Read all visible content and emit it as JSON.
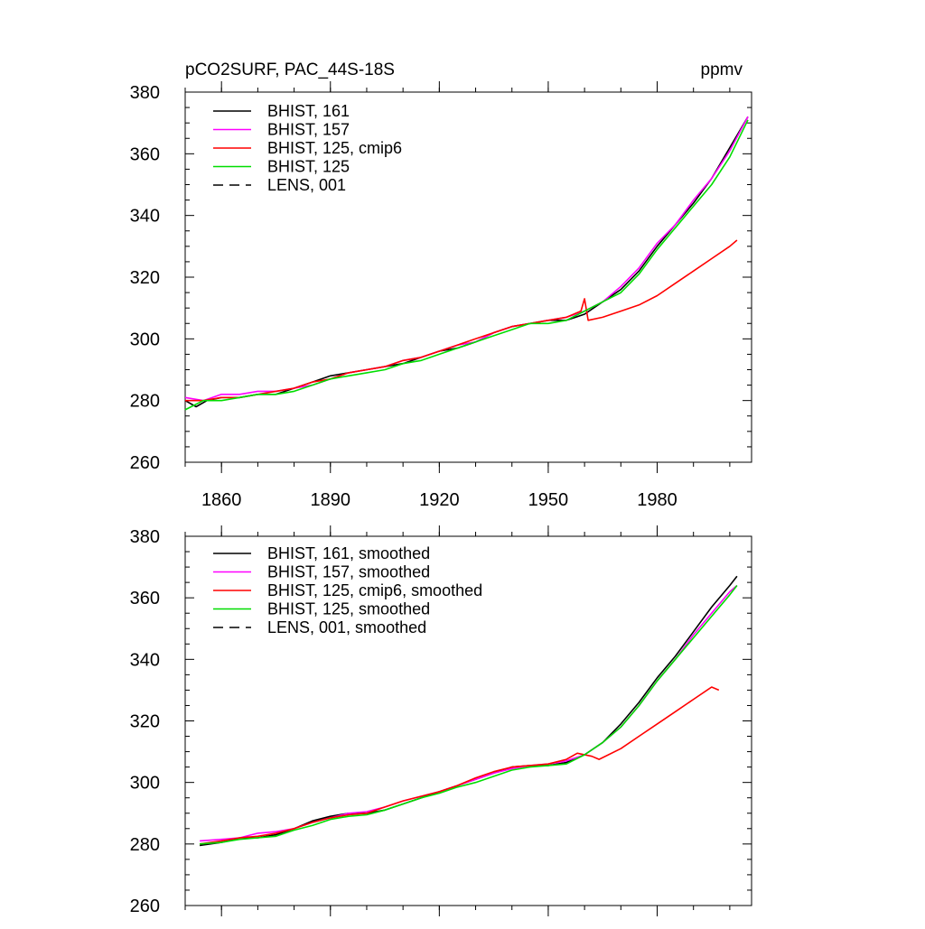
{
  "colors": {
    "black": "#000000",
    "magenta": "#ff00ff",
    "red": "#ff0000",
    "green": "#00dd00"
  },
  "header": {
    "title": "pCO2SURF, PAC_44S-18S",
    "units": "ppmv"
  },
  "chart_data": [
    {
      "type": "line",
      "title": "pCO2SURF, PAC_44S-18S",
      "units": "ppmv",
      "xlim": [
        1850,
        2006
      ],
      "ylim": [
        260,
        380
      ],
      "x_ticks": [
        1860,
        1890,
        1920,
        1950,
        1980
      ],
      "y_ticks": [
        260,
        280,
        300,
        320,
        340,
        360,
        380
      ],
      "grid": false,
      "legend_position": "top-left",
      "legend": [
        "BHIST, 161",
        "BHIST, 157",
        "BHIST, 125, cmip6",
        "BHIST, 125",
        "LENS, 001"
      ],
      "series": [
        {
          "name": "BHIST, 161",
          "color": "#000000",
          "dash": "solid",
          "points": [
            [
              1850,
              280
            ],
            [
              1853,
              278
            ],
            [
              1856,
              280
            ],
            [
              1860,
              281
            ],
            [
              1865,
              281
            ],
            [
              1870,
              282
            ],
            [
              1875,
              282
            ],
            [
              1880,
              284
            ],
            [
              1885,
              286
            ],
            [
              1890,
              288
            ],
            [
              1895,
              289
            ],
            [
              1900,
              290
            ],
            [
              1905,
              291
            ],
            [
              1910,
              292
            ],
            [
              1915,
              294
            ],
            [
              1920,
              296
            ],
            [
              1925,
              297
            ],
            [
              1930,
              299
            ],
            [
              1935,
              302
            ],
            [
              1940,
              304
            ],
            [
              1945,
              305
            ],
            [
              1950,
              306
            ],
            [
              1955,
              306
            ],
            [
              1960,
              308
            ],
            [
              1965,
              312
            ],
            [
              1970,
              316
            ],
            [
              1975,
              322
            ],
            [
              1980,
              330
            ],
            [
              1985,
              337
            ],
            [
              1990,
              344
            ],
            [
              1995,
              352
            ],
            [
              2000,
              362
            ],
            [
              2005,
              372
            ]
          ]
        },
        {
          "name": "BHIST, 157",
          "color": "#ff00ff",
          "dash": "solid",
          "points": [
            [
              1850,
              281
            ],
            [
              1855,
              280
            ],
            [
              1860,
              282
            ],
            [
              1865,
              282
            ],
            [
              1870,
              283
            ],
            [
              1875,
              283
            ],
            [
              1880,
              284
            ],
            [
              1885,
              285
            ],
            [
              1890,
              287
            ],
            [
              1895,
              289
            ],
            [
              1900,
              290
            ],
            [
              1905,
              291
            ],
            [
              1910,
              293
            ],
            [
              1915,
              294
            ],
            [
              1920,
              296
            ],
            [
              1925,
              298
            ],
            [
              1930,
              299
            ],
            [
              1935,
              302
            ],
            [
              1940,
              304
            ],
            [
              1945,
              305
            ],
            [
              1950,
              306
            ],
            [
              1955,
              307
            ],
            [
              1960,
              309
            ],
            [
              1965,
              312
            ],
            [
              1970,
              317
            ],
            [
              1975,
              323
            ],
            [
              1980,
              331
            ],
            [
              1985,
              337
            ],
            [
              1990,
              345
            ],
            [
              1995,
              352
            ],
            [
              2000,
              361
            ],
            [
              2005,
              372
            ]
          ]
        },
        {
          "name": "BHIST, 125, cmip6",
          "color": "#ff0000",
          "dash": "solid",
          "points": [
            [
              1850,
              280
            ],
            [
              1855,
              280
            ],
            [
              1860,
              281
            ],
            [
              1865,
              281
            ],
            [
              1870,
              282
            ],
            [
              1875,
              283
            ],
            [
              1880,
              284
            ],
            [
              1885,
              286
            ],
            [
              1890,
              287
            ],
            [
              1895,
              289
            ],
            [
              1900,
              290
            ],
            [
              1905,
              291
            ],
            [
              1910,
              293
            ],
            [
              1915,
              294
            ],
            [
              1920,
              296
            ],
            [
              1925,
              298
            ],
            [
              1930,
              300
            ],
            [
              1935,
              302
            ],
            [
              1940,
              304
            ],
            [
              1945,
              305
            ],
            [
              1950,
              306
            ],
            [
              1955,
              307
            ],
            [
              1959,
              309
            ],
            [
              1960,
              313
            ],
            [
              1961,
              306
            ],
            [
              1965,
              307
            ],
            [
              1970,
              309
            ],
            [
              1975,
              311
            ],
            [
              1980,
              314
            ],
            [
              1985,
              318
            ],
            [
              1990,
              322
            ],
            [
              1995,
              326
            ],
            [
              2000,
              330
            ],
            [
              2002,
              332
            ]
          ]
        },
        {
          "name": "BHIST, 125",
          "color": "#00dd00",
          "dash": "solid",
          "points": [
            [
              1850,
              277
            ],
            [
              1855,
              280
            ],
            [
              1860,
              280
            ],
            [
              1865,
              281
            ],
            [
              1870,
              282
            ],
            [
              1875,
              282
            ],
            [
              1880,
              283
            ],
            [
              1885,
              285
            ],
            [
              1890,
              287
            ],
            [
              1895,
              288
            ],
            [
              1900,
              289
            ],
            [
              1905,
              290
            ],
            [
              1910,
              292
            ],
            [
              1915,
              293
            ],
            [
              1920,
              295
            ],
            [
              1925,
              297
            ],
            [
              1930,
              299
            ],
            [
              1935,
              301
            ],
            [
              1940,
              303
            ],
            [
              1945,
              305
            ],
            [
              1950,
              305
            ],
            [
              1955,
              306
            ],
            [
              1960,
              309
            ],
            [
              1965,
              312
            ],
            [
              1970,
              315
            ],
            [
              1975,
              321
            ],
            [
              1980,
              329
            ],
            [
              1985,
              336
            ],
            [
              1990,
              343
            ],
            [
              1995,
              350
            ],
            [
              2000,
              359
            ],
            [
              2005,
              371
            ]
          ]
        }
      ]
    },
    {
      "type": "line",
      "xlim": [
        1850,
        2006
      ],
      "ylim": [
        260,
        380
      ],
      "y_ticks": [
        260,
        280,
        300,
        320,
        340,
        360,
        380
      ],
      "grid": false,
      "legend_position": "top-left",
      "legend": [
        "BHIST, 161, smoothed",
        "BHIST, 157, smoothed",
        "BHIST, 125, cmip6, smoothed",
        "BHIST, 125, smoothed",
        "LENS, 001, smoothed"
      ],
      "series": [
        {
          "name": "BHIST, 161, smoothed",
          "color": "#000000",
          "dash": "solid",
          "points": [
            [
              1854,
              279.5
            ],
            [
              1860,
              280.5
            ],
            [
              1865,
              282
            ],
            [
              1870,
              282
            ],
            [
              1875,
              283
            ],
            [
              1880,
              285
            ],
            [
              1885,
              287.5
            ],
            [
              1890,
              289
            ],
            [
              1895,
              290
            ],
            [
              1900,
              290
            ],
            [
              1905,
              291
            ],
            [
              1910,
              293
            ],
            [
              1915,
              295
            ],
            [
              1920,
              297
            ],
            [
              1925,
              299
            ],
            [
              1930,
              301
            ],
            [
              1935,
              303
            ],
            [
              1940,
              305
            ],
            [
              1945,
              305.5
            ],
            [
              1950,
              305.5
            ],
            [
              1955,
              306.5
            ],
            [
              1960,
              309
            ],
            [
              1965,
              313
            ],
            [
              1970,
              319
            ],
            [
              1975,
              326
            ],
            [
              1980,
              334
            ],
            [
              1985,
              341
            ],
            [
              1990,
              349
            ],
            [
              1995,
              357
            ],
            [
              2000,
              364
            ],
            [
              2002,
              367
            ]
          ]
        },
        {
          "name": "BHIST, 157, smoothed",
          "color": "#ff00ff",
          "dash": "solid",
          "points": [
            [
              1854,
              281
            ],
            [
              1860,
              281.5
            ],
            [
              1865,
              282
            ],
            [
              1870,
              283.5
            ],
            [
              1875,
              284
            ],
            [
              1880,
              285
            ],
            [
              1885,
              287
            ],
            [
              1890,
              288.5
            ],
            [
              1895,
              290
            ],
            [
              1900,
              290.5
            ],
            [
              1905,
              292
            ],
            [
              1910,
              294
            ],
            [
              1915,
              295.5
            ],
            [
              1920,
              297
            ],
            [
              1925,
              299
            ],
            [
              1930,
              301
            ],
            [
              1935,
              303
            ],
            [
              1940,
              304.5
            ],
            [
              1945,
              305.5
            ],
            [
              1950,
              306
            ],
            [
              1955,
              307
            ],
            [
              1960,
              309
            ],
            [
              1965,
              313
            ],
            [
              1970,
              318
            ],
            [
              1975,
              325
            ],
            [
              1980,
              333
            ],
            [
              1985,
              340
            ],
            [
              1990,
              348
            ],
            [
              1995,
              355
            ],
            [
              2000,
              362
            ],
            [
              2002,
              364
            ]
          ]
        },
        {
          "name": "BHIST, 125, cmip6, smoothed",
          "color": "#ff0000",
          "dash": "solid",
          "points": [
            [
              1854,
              280
            ],
            [
              1860,
              281
            ],
            [
              1865,
              282
            ],
            [
              1870,
              282.5
            ],
            [
              1875,
              283.5
            ],
            [
              1880,
              285
            ],
            [
              1885,
              287
            ],
            [
              1890,
              288.5
            ],
            [
              1895,
              289.5
            ],
            [
              1900,
              290
            ],
            [
              1905,
              292
            ],
            [
              1910,
              294
            ],
            [
              1915,
              295.5
            ],
            [
              1920,
              297
            ],
            [
              1925,
              299
            ],
            [
              1930,
              301.5
            ],
            [
              1935,
              303.5
            ],
            [
              1940,
              305
            ],
            [
              1945,
              305.5
            ],
            [
              1950,
              306
            ],
            [
              1955,
              307.5
            ],
            [
              1958,
              309.5
            ],
            [
              1962,
              308.5
            ],
            [
              1964,
              307.5
            ],
            [
              1970,
              311
            ],
            [
              1975,
              315
            ],
            [
              1980,
              319
            ],
            [
              1985,
              323
            ],
            [
              1990,
              327
            ],
            [
              1995,
              331
            ],
            [
              1997,
              330
            ]
          ]
        },
        {
          "name": "BHIST, 125, smoothed",
          "color": "#00dd00",
          "dash": "solid",
          "points": [
            [
              1854,
              280
            ],
            [
              1860,
              280.5
            ],
            [
              1865,
              281.5
            ],
            [
              1870,
              282
            ],
            [
              1875,
              282.5
            ],
            [
              1880,
              284.5
            ],
            [
              1885,
              286
            ],
            [
              1890,
              288
            ],
            [
              1895,
              289
            ],
            [
              1900,
              289.5
            ],
            [
              1905,
              291
            ],
            [
              1910,
              293
            ],
            [
              1915,
              295
            ],
            [
              1920,
              296.5
            ],
            [
              1925,
              298.5
            ],
            [
              1930,
              300
            ],
            [
              1935,
              302
            ],
            [
              1940,
              304
            ],
            [
              1945,
              305
            ],
            [
              1950,
              305.5
            ],
            [
              1955,
              306
            ],
            [
              1960,
              309
            ],
            [
              1965,
              313
            ],
            [
              1970,
              318
            ],
            [
              1975,
              325
            ],
            [
              1980,
              333
            ],
            [
              1985,
              340
            ],
            [
              1990,
              347
            ],
            [
              1995,
              354
            ],
            [
              2000,
              361
            ],
            [
              2002,
              364
            ]
          ]
        }
      ]
    }
  ]
}
